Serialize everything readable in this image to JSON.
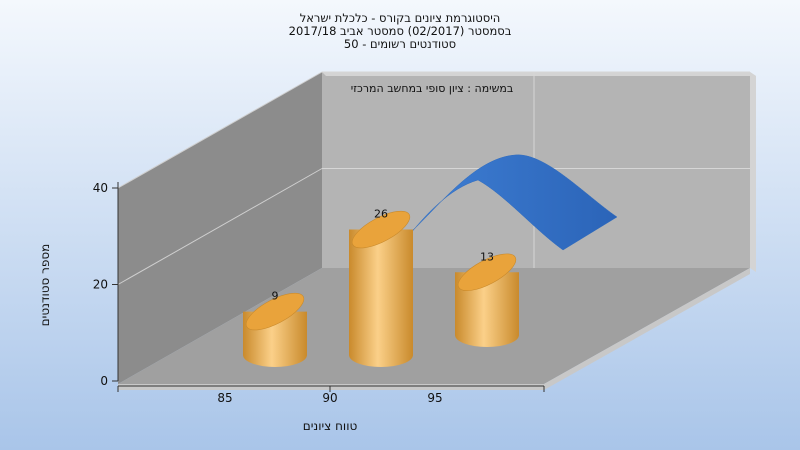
{
  "chart_data": {
    "type": "bar",
    "title_lines": [
      "היסטוגרמת ציונים בקורס - כלכלת ישראל",
      "בסמסטר  (02/2017)  סמסטר אביב 2017/18",
      "סטודנטים רשומים - 50"
    ],
    "annotation": "במשימה : ציון סופי במחשב המרכזי",
    "xlabel": "טווח ציונים",
    "ylabel": "מספר סטודנטים",
    "categories": [
      "85",
      "90",
      "95"
    ],
    "values": [
      9,
      26,
      13
    ],
    "value_labels": [
      "9",
      "26",
      "13"
    ],
    "ylim": [
      0,
      40
    ],
    "yticks": [
      "0",
      "20",
      "40"
    ],
    "curve": {
      "type": "normal-distribution",
      "color": "#2f6cbf"
    },
    "bar_color": "#e9a33b",
    "grid": true,
    "style": "3d-cylinder"
  }
}
